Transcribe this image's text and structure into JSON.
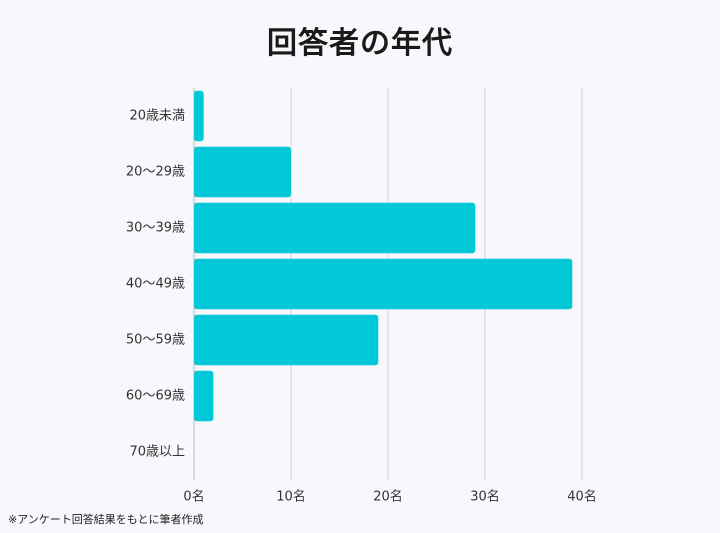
{
  "title": "回答者の年代",
  "footnote": "※アンケート回答結果をもとに筆者作成",
  "colors": {
    "bar": "#00c8d7",
    "grid": "#d4d4d4",
    "axis": "#bdbdbd",
    "text": "#333333"
  },
  "chart_data": {
    "type": "bar",
    "orientation": "horizontal",
    "categories": [
      "20歳未満",
      "20〜29歳",
      "30〜39歳",
      "40〜49歳",
      "50〜59歳",
      "60〜69歳",
      "70歳以上"
    ],
    "values": [
      1,
      10,
      29,
      39,
      19,
      2,
      0
    ],
    "xlim": [
      0,
      40
    ],
    "xticks": [
      0,
      10,
      20,
      30,
      40
    ],
    "xtick_labels": [
      "0名",
      "10名",
      "20名",
      "30名",
      "40名"
    ],
    "grid": true
  }
}
